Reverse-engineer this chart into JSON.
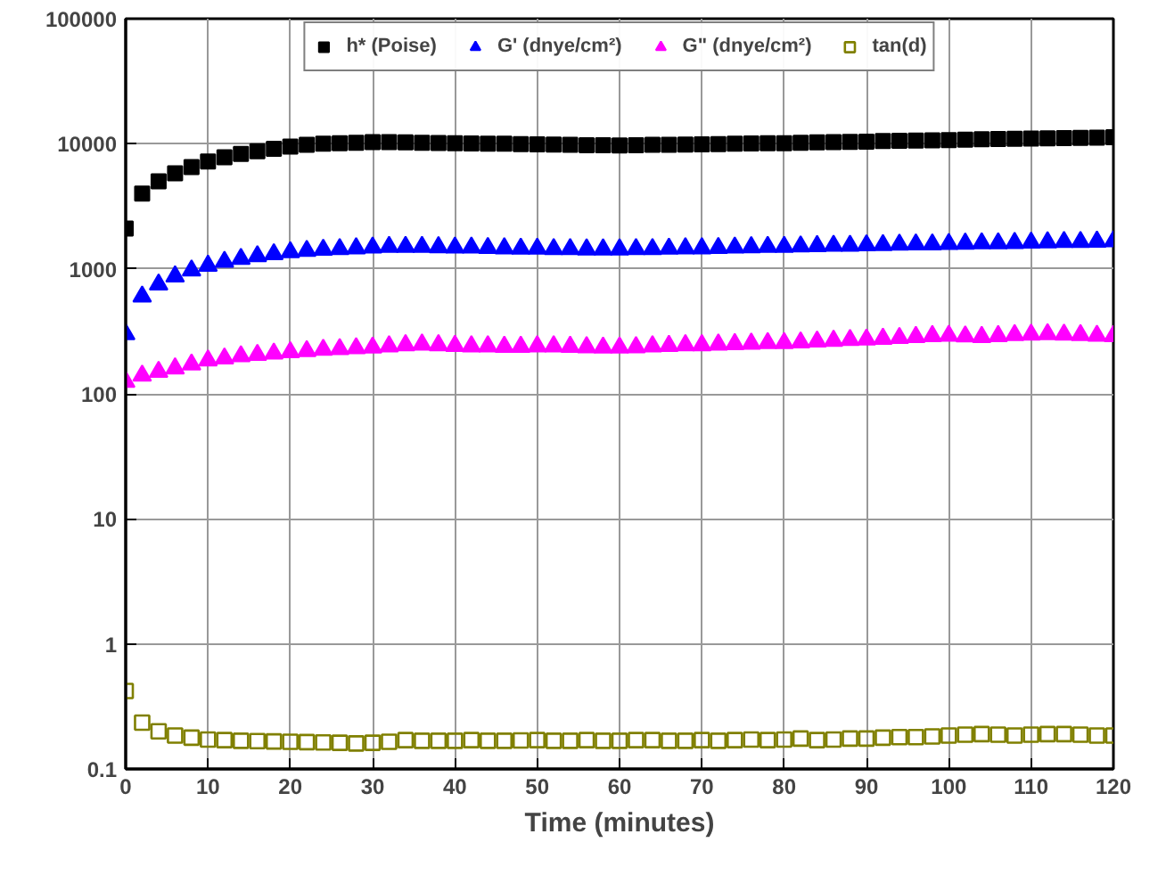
{
  "chart_data": {
    "type": "scatter",
    "xlabel": "Time (minutes)",
    "log": true,
    "grid": true,
    "legend": "top",
    "xlim": [
      0,
      120
    ],
    "xticks": [
      0,
      10,
      20,
      30,
      40,
      50,
      60,
      70,
      80,
      90,
      100,
      110,
      120
    ],
    "ylim": [
      0.1,
      100000
    ],
    "yticks": [
      0.1,
      1,
      10,
      100,
      1000,
      10000,
      100000
    ],
    "x": [
      0,
      2,
      4,
      6,
      8,
      10,
      12,
      14,
      16,
      18,
      20,
      22,
      24,
      26,
      28,
      30,
      32,
      34,
      36,
      38,
      40,
      42,
      44,
      46,
      48,
      50,
      52,
      54,
      56,
      58,
      60,
      62,
      64,
      66,
      68,
      70,
      72,
      74,
      76,
      78,
      80,
      82,
      84,
      86,
      88,
      90,
      92,
      94,
      96,
      98,
      100,
      102,
      104,
      106,
      108,
      110,
      112,
      114,
      116,
      118,
      120
    ],
    "series": [
      {
        "name": "h* (Poise)",
        "color": "#000000",
        "marker": "square",
        "values": [
          2100,
          4000,
          5000,
          5800,
          6500,
          7200,
          7800,
          8300,
          8700,
          9100,
          9500,
          9800,
          10000,
          10100,
          10200,
          10300,
          10300,
          10250,
          10200,
          10150,
          10100,
          10050,
          10000,
          10000,
          9950,
          9900,
          9850,
          9800,
          9750,
          9750,
          9700,
          9750,
          9800,
          9800,
          9850,
          9900,
          9950,
          10000,
          10050,
          10100,
          10100,
          10200,
          10250,
          10300,
          10350,
          10400,
          10500,
          10550,
          10600,
          10650,
          10700,
          10800,
          10850,
          10900,
          10950,
          11000,
          11050,
          11100,
          11150,
          11200,
          11300
        ]
      },
      {
        "name": "G' (dnye/cm²)",
        "color": "#0000ff",
        "marker": "triangle",
        "values": [
          300,
          600,
          750,
          870,
          970,
          1060,
          1140,
          1200,
          1260,
          1310,
          1360,
          1390,
          1420,
          1440,
          1460,
          1480,
          1500,
          1500,
          1500,
          1490,
          1480,
          1480,
          1470,
          1460,
          1450,
          1450,
          1440,
          1440,
          1430,
          1430,
          1430,
          1440,
          1440,
          1450,
          1460,
          1460,
          1470,
          1480,
          1490,
          1500,
          1500,
          1510,
          1520,
          1530,
          1530,
          1540,
          1550,
          1560,
          1570,
          1570,
          1580,
          1590,
          1600,
          1600,
          1610,
          1620,
          1630,
          1640,
          1640,
          1650,
          1660
        ]
      },
      {
        "name": "G\" (dnye/cm²)",
        "color": "#ff00ff",
        "marker": "triangle",
        "values": [
          125,
          140,
          150,
          160,
          172,
          185,
          192,
          200,
          205,
          210,
          215,
          220,
          225,
          228,
          232,
          235,
          240,
          245,
          248,
          245,
          242,
          240,
          240,
          238,
          238,
          240,
          240,
          238,
          236,
          235,
          235,
          236,
          240,
          242,
          245,
          245,
          248,
          250,
          252,
          255,
          255,
          258,
          262,
          266,
          270,
          272,
          276,
          280,
          285,
          290,
          292,
          288,
          285,
          290,
          295,
          298,
          300,
          298,
          295,
          292,
          290
        ]
      },
      {
        "name": "tan(d)",
        "color": "#808000",
        "marker": "square_open",
        "values": [
          0.42,
          0.235,
          0.2,
          0.185,
          0.178,
          0.172,
          0.17,
          0.168,
          0.167,
          0.166,
          0.165,
          0.164,
          0.163,
          0.162,
          0.16,
          0.162,
          0.165,
          0.17,
          0.168,
          0.168,
          0.168,
          0.17,
          0.168,
          0.168,
          0.169,
          0.17,
          0.168,
          0.168,
          0.17,
          0.168,
          0.168,
          0.17,
          0.17,
          0.168,
          0.168,
          0.17,
          0.168,
          0.17,
          0.172,
          0.17,
          0.172,
          0.175,
          0.17,
          0.172,
          0.175,
          0.175,
          0.178,
          0.18,
          0.18,
          0.182,
          0.185,
          0.188,
          0.19,
          0.188,
          0.185,
          0.188,
          0.19,
          0.19,
          0.188,
          0.185,
          0.185
        ]
      }
    ]
  }
}
